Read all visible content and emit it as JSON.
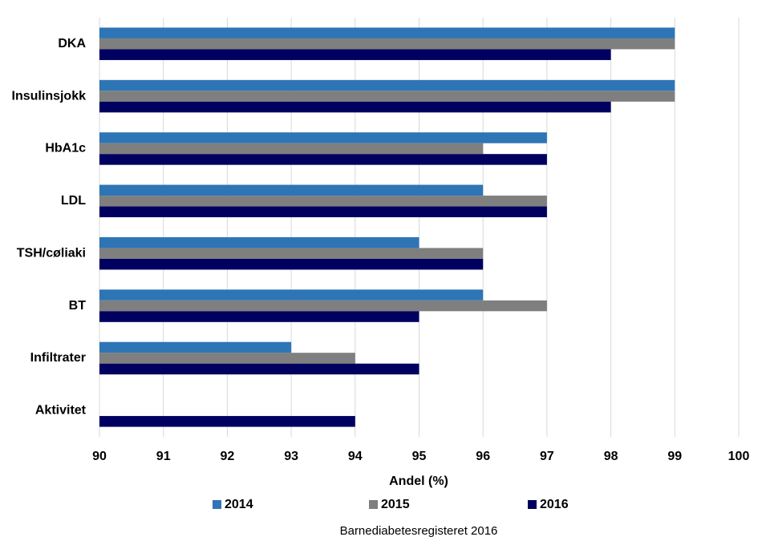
{
  "chart_data": {
    "type": "hbar",
    "categories": [
      "DKA",
      "Insulinsjokk",
      "HbA1c",
      "LDL",
      "TSH/cøliaki",
      "BT",
      "Infiltrater",
      "Aktivitet"
    ],
    "series": [
      {
        "name": "2014",
        "color": "#2e75b6",
        "values": [
          99,
          99,
          97,
          96,
          95,
          96,
          93,
          null
        ]
      },
      {
        "name": "2015",
        "color": "#7f7f7f",
        "values": [
          99,
          99,
          96,
          97,
          96,
          97,
          94,
          null
        ]
      },
      {
        "name": "2016",
        "color": "#000060",
        "values": [
          98,
          98,
          97,
          97,
          96,
          95,
          95,
          94
        ]
      }
    ],
    "xlabel": "Andel (%)",
    "xlim": [
      90,
      100
    ],
    "xticks": [
      90,
      91,
      92,
      93,
      94,
      95,
      96,
      97,
      98,
      99,
      100
    ],
    "grid": true,
    "legend": "bottom",
    "source": "Barnediabetesregisteret 2016"
  }
}
